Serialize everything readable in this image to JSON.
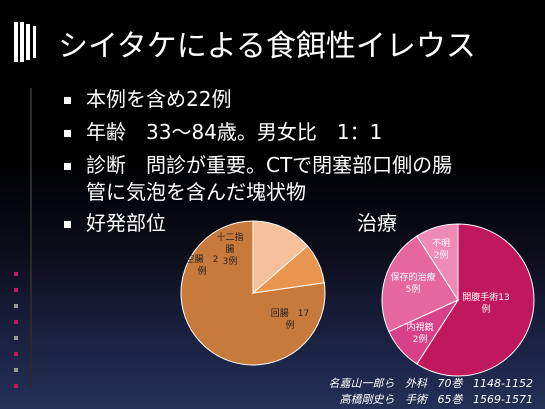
{
  "slide": {
    "title": "シイタケによる食餌性イレウス",
    "bullets": [
      {
        "text": "本例を含め22例"
      },
      {
        "text": "年齢　33〜84歳。男女比　1：1"
      },
      {
        "text": "診断　問診が重要。CTで閉塞部口側の腸",
        "cont": "管に気泡を含んだ塊状物"
      }
    ],
    "section_left": "好発部位",
    "section_right": "治療"
  },
  "chart_data": [
    {
      "type": "pie",
      "title": "好発部位",
      "categories": [
        "回腸",
        "空腸",
        "十二指腸"
      ],
      "values": [
        17,
        2,
        3
      ],
      "value_unit": "例",
      "colors": [
        "#c87a3c",
        "#e8954f",
        "#f5c09a"
      ],
      "labels": [
        {
          "lines": [
            "回腸　17",
            "例"
          ]
        },
        {
          "lines": [
            "空腸　2",
            "例"
          ]
        },
        {
          "lines": [
            "十二指",
            "腸",
            "3例"
          ]
        }
      ]
    },
    {
      "type": "pie",
      "title": "治療",
      "categories": [
        "開腹手術",
        "内視鏡",
        "保存的治療",
        "不明"
      ],
      "values": [
        13,
        2,
        5,
        2
      ],
      "value_unit": "例",
      "colors": [
        "#c0185f",
        "#d9408a",
        "#e6679f",
        "#ee8ab6"
      ],
      "labels": [
        {
          "lines": [
            "開腹手術13",
            "例"
          ]
        },
        {
          "lines": [
            "内視鏡",
            "2例"
          ]
        },
        {
          "lines": [
            "保存的治療",
            "5例"
          ]
        },
        {
          "lines": [
            "不明",
            "2例"
          ]
        }
      ]
    }
  ],
  "references": [
    [
      "名嘉山一郎ら",
      "外科",
      "70巻",
      "1148-1152"
    ],
    [
      "高橋剛史ら",
      "手術",
      "65巻",
      "1569-1571"
    ]
  ]
}
